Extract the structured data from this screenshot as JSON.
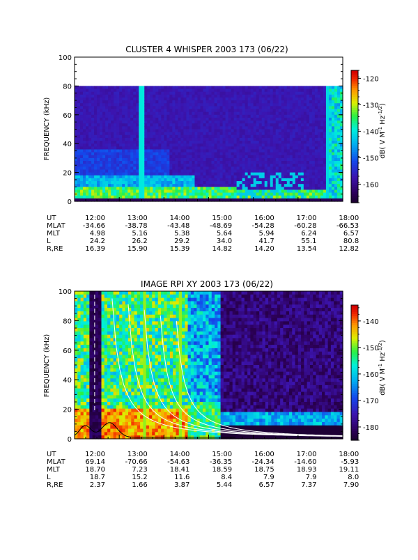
{
  "chart_data": [
    {
      "type": "heatmap",
      "title": "CLUSTER 4 WHISPER 2003 173 (06/22)",
      "ylabel": "FREQUENCY (kHz)",
      "ylim": [
        0,
        100
      ],
      "yticks": [
        0,
        20,
        40,
        60,
        80,
        100
      ],
      "data_ylim": [
        0,
        80
      ],
      "xlim_hours": [
        12,
        18
      ],
      "colorbar": {
        "label": "dB( V M-1 Hz-1/2)",
        "label_main": "dB( V M",
        "label_exp1": "-1",
        "label_mid": " Hz",
        "label_exp2": "-1/2",
        "label_end": ")",
        "range": [
          -167,
          -117
        ],
        "ticks": [
          -120,
          -130,
          -140,
          -150,
          -160
        ]
      },
      "ephemeris": {
        "columns": [
          "12:00",
          "13:00",
          "14:00",
          "15:00",
          "16:00",
          "17:00",
          "18:00"
        ],
        "rows": [
          {
            "label": "UT",
            "values": [
              "12:00",
              "13:00",
              "14:00",
              "15:00",
              "16:00",
              "17:00",
              "18:00"
            ]
          },
          {
            "label": "MLAT",
            "values": [
              "-34.66",
              "-38.78",
              "-43.48",
              "-48.69",
              "-54.28",
              "-60.28",
              "-66.53"
            ]
          },
          {
            "label": "MLT",
            "values": [
              "4.98",
              "5.16",
              "5.38",
              "5.64",
              "5.94",
              "6.24",
              "6.57"
            ]
          },
          {
            "label": "L",
            "values": [
              "24.2",
              "26.2",
              "29.2",
              "34.0",
              "41.7",
              "55.1",
              "80.8"
            ]
          },
          {
            "label": "R,RE",
            "values": [
              "16.39",
              "15.90",
              "15.39",
              "14.82",
              "14.20",
              "13.54",
              "12.82"
            ]
          }
        ]
      }
    },
    {
      "type": "heatmap",
      "title": "IMAGE RPI XY 2003 173 (06/22)",
      "ylabel": "FREQUENCY (kHz)",
      "ylim": [
        0,
        100
      ],
      "yticks": [
        0,
        20,
        40,
        60,
        80,
        100
      ],
      "xlim_hours": [
        12,
        18
      ],
      "colorbar": {
        "label": "dB( V M-1 Hz-1/2)",
        "label_main": "dB( V M",
        "label_exp1": "-1",
        "label_mid": " Hz",
        "label_exp2": "-1/2",
        "label_end": ")",
        "range": [
          -185,
          -134
        ],
        "ticks": [
          -140,
          -150,
          -160,
          -170,
          -180
        ]
      },
      "ephemeris": {
        "columns": [
          "12:00",
          "13:00",
          "14:00",
          "15:00",
          "16:00",
          "17:00",
          "18:00"
        ],
        "rows": [
          {
            "label": "UT",
            "values": [
              "12:00",
              "13:00",
              "14:00",
              "15:00",
              "16:00",
              "17:00",
              "18:00"
            ]
          },
          {
            "label": "MLAT",
            "values": [
              "69.14",
              "-70.66",
              "-54.63",
              "-36.35",
              "-24.34",
              "-14.60",
              "-5.93"
            ]
          },
          {
            "label": "MLT",
            "values": [
              "18.70",
              "7.23",
              "18.41",
              "18.59",
              "18.75",
              "18.93",
              "19.11"
            ]
          },
          {
            "label": "L",
            "values": [
              "18.7",
              "15.2",
              "11.6",
              "8.4",
              "7.9",
              "7.9",
              "8.0"
            ]
          },
          {
            "label": "R,RE",
            "values": [
              "2.37",
              "1.66",
              "3.87",
              "5.44",
              "6.57",
              "7.37",
              "7.90"
            ]
          }
        ]
      }
    }
  ]
}
